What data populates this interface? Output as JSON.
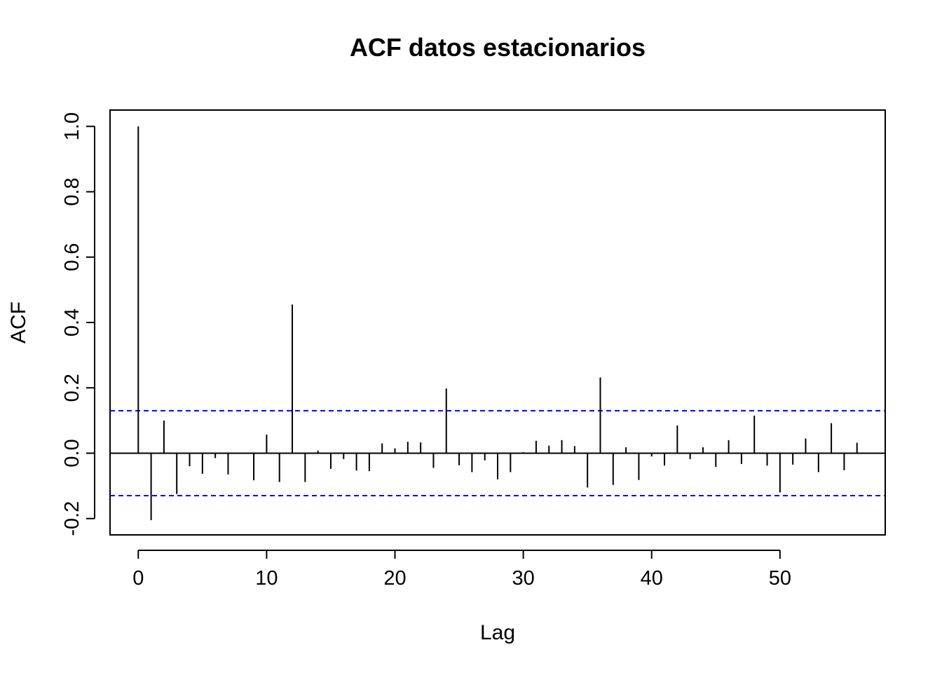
{
  "chart_data": {
    "type": "bar",
    "title": "ACF datos estacionarios",
    "xlabel": "Lag",
    "ylabel": "ACF",
    "xlim": [
      -2.2,
      58.2
    ],
    "ylim": [
      -0.25,
      1.05
    ],
    "x_ticks": [
      0,
      10,
      20,
      30,
      40,
      50
    ],
    "x_tick_labels": [
      "0",
      "10",
      "20",
      "30",
      "40",
      "50"
    ],
    "y_ticks": [
      -0.2,
      0.0,
      0.2,
      0.4,
      0.6,
      0.8,
      1.0
    ],
    "y_tick_labels": [
      "-0.2",
      "0.0",
      "0.2",
      "0.4",
      "0.6",
      "0.8",
      "1.0"
    ],
    "confidence_bound": 0.13,
    "confidence_color": "#0000ff",
    "line_color": "#000000",
    "grid": false,
    "lags": [
      0,
      1,
      2,
      3,
      4,
      5,
      6,
      7,
      8,
      9,
      10,
      11,
      12,
      13,
      14,
      15,
      16,
      17,
      18,
      19,
      20,
      21,
      22,
      23,
      24,
      25,
      26,
      27,
      28,
      29,
      30,
      31,
      32,
      33,
      34,
      35,
      36,
      37,
      38,
      39,
      40,
      41,
      42,
      43,
      44,
      45,
      46,
      47,
      48,
      49,
      50,
      51,
      52,
      53,
      54,
      55,
      56
    ],
    "values": [
      1.0,
      -0.205,
      0.1,
      -0.125,
      -0.04,
      -0.063,
      -0.015,
      -0.065,
      0.0,
      -0.083,
      0.057,
      -0.088,
      0.455,
      -0.088,
      0.008,
      -0.048,
      -0.018,
      -0.053,
      -0.055,
      0.03,
      0.015,
      0.035,
      0.033,
      -0.045,
      0.198,
      -0.037,
      -0.058,
      -0.022,
      -0.08,
      -0.058,
      0.003,
      0.038,
      0.023,
      0.04,
      0.022,
      -0.105,
      0.232,
      -0.097,
      0.018,
      -0.082,
      -0.01,
      -0.038,
      0.085,
      -0.018,
      0.018,
      -0.042,
      0.04,
      -0.033,
      0.115,
      -0.038,
      -0.12,
      -0.035,
      0.045,
      -0.058,
      0.092,
      -0.052,
      0.032
    ]
  }
}
